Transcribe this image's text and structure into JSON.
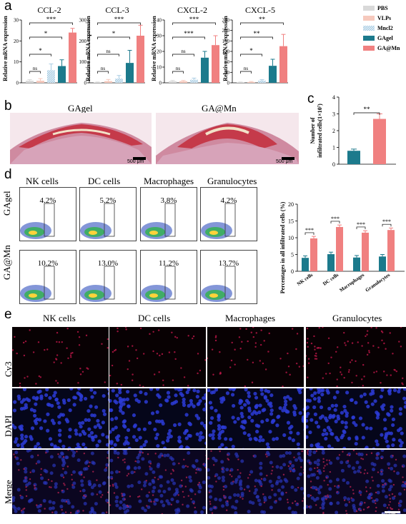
{
  "panels": {
    "a": "a",
    "b": "b",
    "c": "c",
    "d": "d",
    "e": "e"
  },
  "panel_a": {
    "ylabel": "Relative mRNA expression",
    "legend": [
      {
        "name": "PBS",
        "color": "#d9d9d9"
      },
      {
        "name": "VLPs",
        "color": "#f6c9bd"
      },
      {
        "name": "Mncl2",
        "color": "#a9cde4"
      },
      {
        "name": "GAgel",
        "color": "#1c7a8c"
      },
      {
        "name": "GA@Mn",
        "color": "#f08080"
      }
    ],
    "charts": [
      {
        "title": "CCL-2",
        "ticks": [
          "0",
          "10",
          "20",
          "30"
        ],
        "ymax": 30,
        "values": [
          1,
          1,
          6,
          8,
          24
        ],
        "errs": [
          0.5,
          1,
          3,
          3,
          2
        ],
        "sig": [
          {
            "label": "ns"
          },
          {
            "label": "*"
          },
          {
            "label": "*"
          },
          {
            "label": "***"
          }
        ]
      },
      {
        "title": "CCL-3",
        "ticks": [
          "0",
          "100",
          "200",
          "300"
        ],
        "ymax": 300,
        "values": [
          2,
          8,
          20,
          95,
          225
        ],
        "errs": [
          2,
          8,
          15,
          60,
          50
        ],
        "sig": [
          {
            "label": "ns"
          },
          {
            "label": "ns"
          },
          {
            "label": "*"
          },
          {
            "label": "***"
          }
        ]
      },
      {
        "title": "CXCL-2",
        "ticks": [
          "0",
          "10",
          "20",
          "30",
          "40"
        ],
        "ymax": 40,
        "values": [
          1,
          1,
          2,
          16,
          24
        ],
        "errs": [
          0.5,
          0.5,
          1,
          4,
          6
        ],
        "sig": [
          {
            "label": "ns"
          },
          {
            "label": "ns"
          },
          {
            "label": "***"
          },
          {
            "label": "***"
          }
        ]
      },
      {
        "title": "CXCL-5",
        "ticks": [
          "0",
          "40",
          "80",
          "120",
          "160",
          "200",
          "240"
        ],
        "ymax": 240,
        "values": [
          2,
          3,
          8,
          65,
          140
        ],
        "errs": [
          1,
          2,
          4,
          25,
          45
        ],
        "sig": [
          {
            "label": "ns"
          },
          {
            "label": "*"
          },
          {
            "label": "**"
          },
          {
            "label": "**"
          }
        ]
      }
    ]
  },
  "panel_b": {
    "left_title": "GAgel",
    "right_title": "GA@Mn",
    "scale": "500 μm"
  },
  "panel_c": {
    "ylabel_line1": "Number of",
    "ylabel_line2": "infiltrated cells(1×10",
    "ylabel_sup": "7",
    "ylabel_end": ")",
    "ticks": [
      "0",
      "1",
      "2",
      "3",
      "4"
    ],
    "ymax": 4,
    "values": [
      0.8,
      2.7
    ],
    "errs": [
      0.1,
      0.3
    ],
    "colors": [
      "#1c7a8c",
      "#f08080"
    ],
    "sig": "**"
  },
  "panel_d": {
    "columns": [
      "NK cells",
      "DC cells",
      "Macrophages",
      "Granulocytes"
    ],
    "rows": [
      {
        "label": "GAgel",
        "values": [
          "4.2%",
          "5.2%",
          "3.8%",
          "4.2%"
        ]
      },
      {
        "label": "GA@Mn",
        "values": [
          "10.2%",
          "13.0%",
          "11.2%",
          "13.7%"
        ]
      }
    ],
    "chart": {
      "ylabel": "Percentages in all infiltrated cells (%)",
      "ticks": [
        "0",
        "5",
        "10",
        "15",
        "20"
      ],
      "ymax": 20,
      "categories": [
        "NK cells",
        "DC cells",
        "Macrophages",
        "Granulocytes"
      ],
      "series": [
        {
          "values": [
            4.0,
            5.1,
            4.1,
            4.4
          ],
          "color": "#1c7a8c"
        },
        {
          "values": [
            9.8,
            13.2,
            11.5,
            12.3
          ],
          "color": "#f08080"
        }
      ],
      "sig": [
        "***",
        "***",
        "***",
        "***"
      ]
    }
  },
  "panel_e": {
    "columns": [
      "NK cells",
      "DC cells",
      "Macrophages",
      "Granulocytes"
    ],
    "rows": [
      "Cy3",
      "DAPI",
      "Merge"
    ],
    "scale": "50 μm"
  },
  "chart_data": [
    {
      "type": "bar",
      "title": "CCL-2",
      "categories": [
        "PBS",
        "VLPs",
        "Mncl2",
        "GAgel",
        "GA@Mn"
      ],
      "values": [
        1,
        1,
        6,
        8,
        24
      ],
      "ylabel": "Relative mRNA expression",
      "ylim": [
        0,
        30
      ]
    },
    {
      "type": "bar",
      "title": "CCL-3",
      "categories": [
        "PBS",
        "VLPs",
        "Mncl2",
        "GAgel",
        "GA@Mn"
      ],
      "values": [
        2,
        8,
        20,
        95,
        225
      ],
      "ylabel": "Relative mRNA expression",
      "ylim": [
        0,
        300
      ]
    },
    {
      "type": "bar",
      "title": "CXCL-2",
      "categories": [
        "PBS",
        "VLPs",
        "Mncl2",
        "GAgel",
        "GA@Mn"
      ],
      "values": [
        1,
        1,
        2,
        16,
        24
      ],
      "ylabel": "Relative mRNA expression",
      "ylim": [
        0,
        40
      ]
    },
    {
      "type": "bar",
      "title": "CXCL-5",
      "categories": [
        "PBS",
        "VLPs",
        "Mncl2",
        "GAgel",
        "GA@Mn"
      ],
      "values": [
        2,
        3,
        8,
        65,
        140
      ],
      "ylabel": "Relative mRNA expression",
      "ylim": [
        0,
        240
      ]
    },
    {
      "type": "bar",
      "categories": [
        "GAgel",
        "GA@Mn"
      ],
      "values": [
        0.8,
        2.7
      ],
      "ylabel": "Number of infiltrated cells(1×10^7)",
      "ylim": [
        0,
        4
      ]
    },
    {
      "type": "bar",
      "categories": [
        "NK cells",
        "DC cells",
        "Macrophages",
        "Granulocytes"
      ],
      "series": [
        {
          "name": "GAgel",
          "values": [
            4.0,
            5.1,
            4.1,
            4.4
          ]
        },
        {
          "name": "GA@Mn",
          "values": [
            9.8,
            13.2,
            11.5,
            12.3
          ]
        }
      ],
      "ylabel": "Percentages in all infiltrated cells (%)",
      "ylim": [
        0,
        20
      ]
    }
  ]
}
